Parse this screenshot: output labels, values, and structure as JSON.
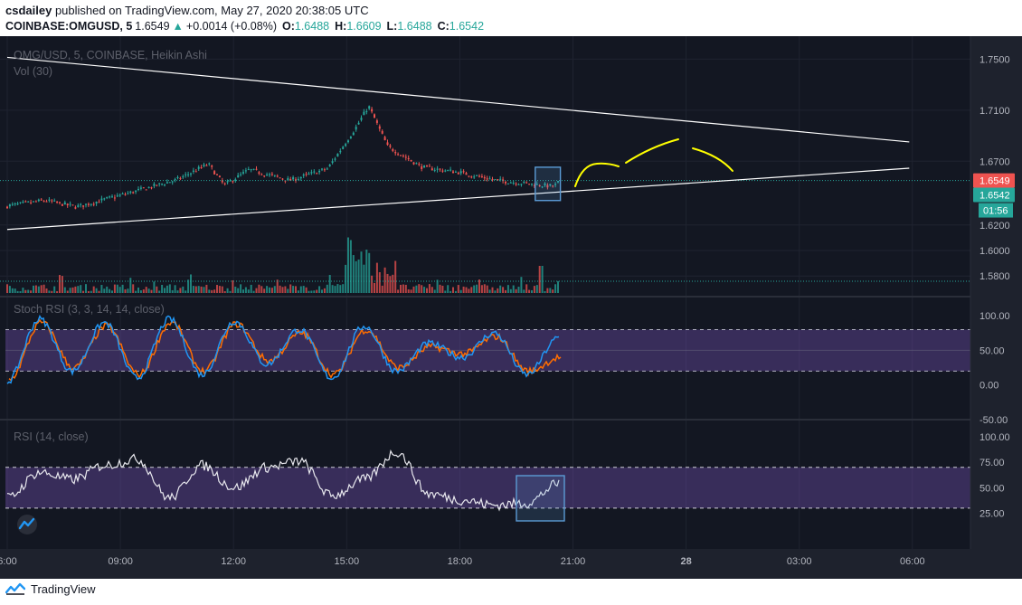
{
  "header": {
    "user": "csdailey",
    "published_text": "published on TradingView.com, May 27, 2020 20:38:05 UTC",
    "symbol": "COINBASE:OMGUSD, 5",
    "last_price": "1.6549",
    "change_arrow": "▲",
    "change": "+0.0014 (+0.08%)",
    "open_label": "O:",
    "open": "1.6488",
    "high_label": "H:",
    "high": "1.6609",
    "low_label": "L:",
    "low": "1.6488",
    "close_label": "C:",
    "close": "1.6542"
  },
  "footer": {
    "brand": "TradingView"
  },
  "colors": {
    "background": "#131722",
    "axis_bg": "#1e222d",
    "up": "#26a69a",
    "down": "#ef5350",
    "trendline": "#ffffff",
    "annotation": "#ffff00",
    "box": "#5b9bd5",
    "band": "#7e57c2",
    "k_line": "#2196f3",
    "d_line": "#ff6d00"
  },
  "chart_data": [
    {
      "type": "candlestick",
      "pane": "price",
      "title": "OMG/USD, 5, COINBASE, Heikin Ashi",
      "style": "Heikin Ashi",
      "ylim": [
        1.566,
        1.768
      ],
      "y_ticks": [
        "1.7500",
        "1.7100",
        "1.6700",
        "1.6200",
        "1.6000",
        "1.5800"
      ],
      "current_price_label": "1.6549",
      "close_label": "1.6542",
      "countdown_label": "01:56",
      "key_points": [
        {
          "time": "06:00",
          "price": 1.6349
        },
        {
          "time": "07:00",
          "price": 1.6392
        },
        {
          "time": "07:50",
          "price": 1.6342
        },
        {
          "time": "09:00",
          "price": 1.6432
        },
        {
          "time": "10:30",
          "price": 1.6555
        },
        {
          "time": "11:20",
          "price": 1.6678
        },
        {
          "time": "11:45",
          "price": 1.6512
        },
        {
          "time": "12:25",
          "price": 1.6633
        },
        {
          "time": "13:30",
          "price": 1.6549
        },
        {
          "time": "14:30",
          "price": 1.6643
        },
        {
          "time": "15:15",
          "price": 1.6967
        },
        {
          "time": "15:35",
          "price": 1.7133
        },
        {
          "time": "16:05",
          "price": 1.6816
        },
        {
          "time": "17:00",
          "price": 1.6653
        },
        {
          "time": "18:00",
          "price": 1.6612
        },
        {
          "time": "19:00",
          "price": 1.6549
        },
        {
          "time": "20:30",
          "price": 1.6502
        },
        {
          "time": "20:38",
          "price": 1.6542
        }
      ],
      "trendlines": [
        {
          "from": {
            "time": "06:00",
            "price": 1.7514
          },
          "to": {
            "time": "05:55",
            "price": 1.6851
          }
        },
        {
          "from": {
            "time": "06:00",
            "price": 1.6165
          },
          "to": {
            "time": "05:55",
            "price": 1.6645
          }
        }
      ],
      "annotation": "projected path (freehand, yellow)",
      "highlight_box": {
        "from": "20:00",
        "to": "20:40",
        "price_range": [
          1.6392,
          1.6653
        ]
      }
    },
    {
      "type": "bar",
      "pane": "volume",
      "title": "Vol (30)",
      "note": "volume histogram; spike near 15:30"
    },
    {
      "type": "line",
      "pane": "stoch_rsi",
      "title": "Stoch RSI (3, 3, 14, 14, close)",
      "ylim": [
        -50,
        125
      ],
      "y_ticks": [
        "100.00",
        "50.00",
        "0.00",
        "-50.00"
      ],
      "band": [
        20,
        80
      ],
      "series": [
        {
          "name": "%K",
          "key_points": [
            5,
            95,
            20,
            90,
            10,
            95,
            15,
            92,
            30,
            80,
            10,
            85,
            20,
            60,
            40,
            75,
            15,
            68
          ]
        },
        {
          "name": "%D",
          "key_points": [
            8,
            90,
            25,
            85,
            15,
            90,
            20,
            88,
            35,
            75,
            15,
            80,
            25,
            55,
            45,
            70,
            20,
            40
          ]
        }
      ]
    },
    {
      "type": "line",
      "pane": "rsi",
      "title": "RSI (14, close)",
      "ylim": [
        -10,
        115
      ],
      "y_ticks": [
        "100.00",
        "75.00",
        "50.00",
        "25.00"
      ],
      "band": [
        30,
        70
      ],
      "key_points": [
        40,
        65,
        58,
        72,
        78,
        40,
        72,
        50,
        70,
        76,
        42,
        58,
        85,
        44,
        38,
        33,
        35,
        54
      ]
    }
  ],
  "x_axis": {
    "ticks": [
      {
        "time": "06:00",
        "label": "6:00"
      },
      {
        "time": "09:00",
        "label": "09:00"
      },
      {
        "time": "12:00",
        "label": "12:00"
      },
      {
        "time": "15:00",
        "label": "15:00"
      },
      {
        "time": "18:00",
        "label": "18:00"
      },
      {
        "time": "21:00",
        "label": "21:00"
      },
      {
        "time": "00:00",
        "label": "28"
      },
      {
        "time": "03:00",
        "label": "03:00"
      },
      {
        "time": "06:00+",
        "label": "06:00"
      }
    ]
  }
}
